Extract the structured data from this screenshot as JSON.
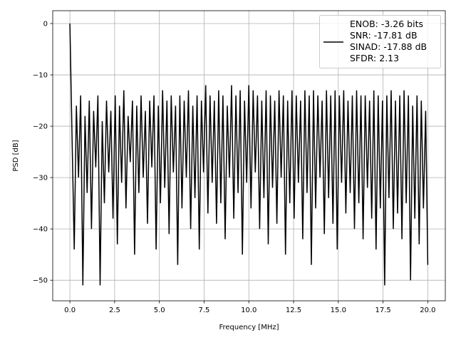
{
  "chart_data": {
    "type": "line",
    "title": "",
    "xlabel": "Frequency [MHz]",
    "ylabel": "PSD [dB]",
    "xlim": [
      -0.96,
      20.98
    ],
    "ylim": [
      -54.0,
      2.5
    ],
    "xticks": [
      0.0,
      2.5,
      5.0,
      7.5,
      10.0,
      12.5,
      15.0,
      17.5,
      20.0
    ],
    "xtick_labels": [
      "0.0",
      "2.5",
      "5.0",
      "7.5",
      "10.0",
      "12.5",
      "15.0",
      "17.5",
      "20.0"
    ],
    "yticks": [
      0,
      -10,
      -20,
      -30,
      -40,
      -50
    ],
    "ytick_labels": [
      "0",
      "−10",
      "−20",
      "−30",
      "−40",
      "−50"
    ],
    "grid": true,
    "legend_position": "top-right",
    "line_color": "#000000",
    "series": [
      {
        "name": "ENOB: -3.26 bits\nSNR: -17.81 dB\nSINAD: -17.88 dB\nSFDR: 2.13",
        "x_range": [
          0,
          20
        ],
        "y": [
          0,
          -22,
          -44,
          -16,
          -30,
          -14,
          -51,
          -18,
          -33,
          -15,
          -40,
          -17,
          -28,
          -14,
          -51,
          -19,
          -35,
          -15,
          -29,
          -17,
          -38,
          -14,
          -43,
          -16,
          -31,
          -13,
          -36,
          -18,
          -27,
          -15,
          -45,
          -16,
          -33,
          -14,
          -30,
          -17,
          -39,
          -15,
          -28,
          -14,
          -44,
          -16,
          -35,
          -13,
          -32,
          -15,
          -41,
          -14,
          -29,
          -16,
          -47,
          -14,
          -36,
          -15,
          -30,
          -13,
          -40,
          -16,
          -34,
          -14,
          -44,
          -15,
          -29,
          -12,
          -37,
          -14,
          -31,
          -15,
          -39,
          -13,
          -35,
          -14,
          -42,
          -16,
          -30,
          -12,
          -38,
          -14,
          -33,
          -13,
          -45,
          -15,
          -31,
          -12,
          -36,
          -13,
          -29,
          -14,
          -40,
          -15,
          -34,
          -13,
          -43,
          -14,
          -32,
          -15,
          -39,
          -13,
          -30,
          -14,
          -45,
          -15,
          -35,
          -13,
          -38,
          -14,
          -31,
          -15,
          -42,
          -13,
          -33,
          -14,
          -47,
          -13,
          -36,
          -14,
          -30,
          -15,
          -41,
          -13,
          -34,
          -14,
          -39,
          -13,
          -44,
          -14,
          -31,
          -13,
          -37,
          -15,
          -33,
          -14,
          -40,
          -13,
          -35,
          -14,
          -42,
          -14,
          -32,
          -15,
          -38,
          -13,
          -44,
          -14,
          -36,
          -15,
          -51,
          -14,
          -34,
          -13,
          -40,
          -15,
          -37,
          -14,
          -42,
          -13,
          -35,
          -14,
          -50,
          -16,
          -38,
          -14,
          -43,
          -15,
          -36,
          -17,
          -47
        ]
      }
    ]
  }
}
